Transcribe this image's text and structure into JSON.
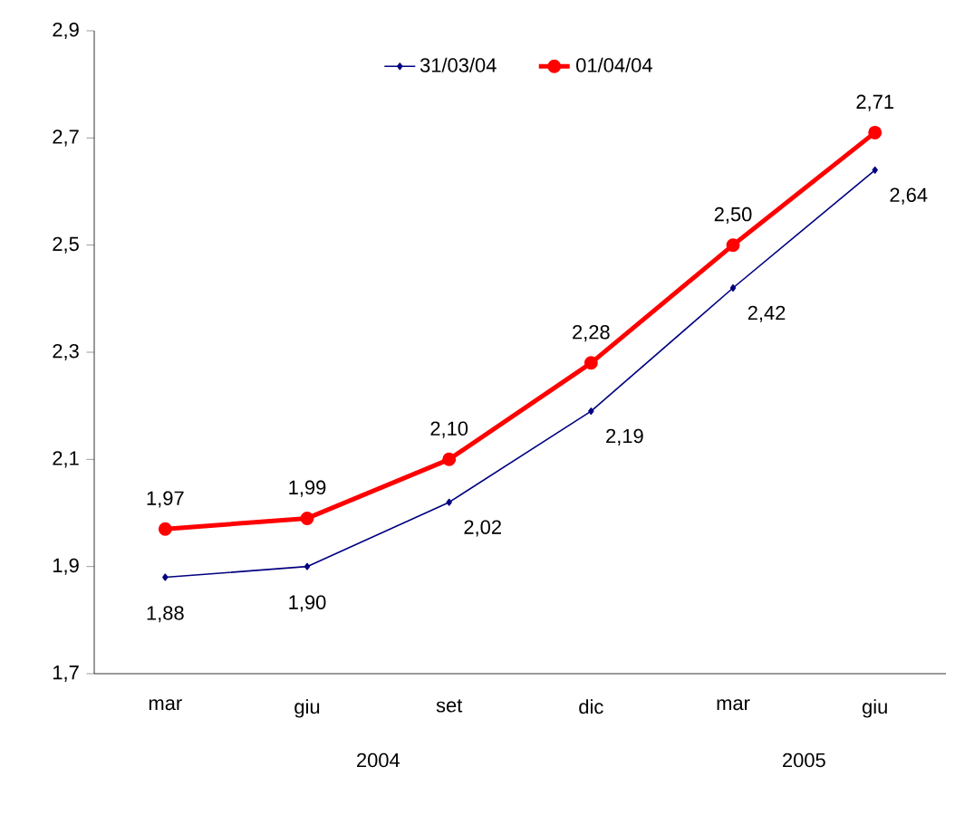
{
  "chart_data": {
    "type": "line",
    "categories": [
      "mar",
      "giu",
      "set",
      "dic",
      "mar",
      "giu"
    ],
    "series": [
      {
        "name": "31/03/04",
        "color": "#000080",
        "marker": "diamond",
        "values": [
          1.88,
          1.9,
          2.02,
          2.19,
          2.42,
          2.64
        ],
        "value_labels": [
          "1,88",
          "1,90",
          "2,02",
          "2,19",
          "2,42",
          "2,64"
        ]
      },
      {
        "name": "01/04/04",
        "color": "#ff0000",
        "marker": "circle",
        "values": [
          1.97,
          1.99,
          2.1,
          2.28,
          2.5,
          2.71
        ],
        "value_labels": [
          "1,97",
          "1,99",
          "2,10",
          "2,28",
          "2,50",
          "2,71"
        ]
      }
    ],
    "ylim": [
      1.7,
      2.9
    ],
    "yticks": [
      {
        "value": 1.7,
        "label": "1,7"
      },
      {
        "value": 1.9,
        "label": "1,9"
      },
      {
        "value": 2.1,
        "label": "2,1"
      },
      {
        "value": 2.3,
        "label": "2,3"
      },
      {
        "value": 2.5,
        "label": "2,5"
      },
      {
        "value": 2.7,
        "label": "2,7"
      },
      {
        "value": 2.9,
        "label": "2,9"
      }
    ],
    "annotations": [
      "2004",
      "2005"
    ],
    "legend": "top",
    "grid": false,
    "line_style": "solid"
  }
}
